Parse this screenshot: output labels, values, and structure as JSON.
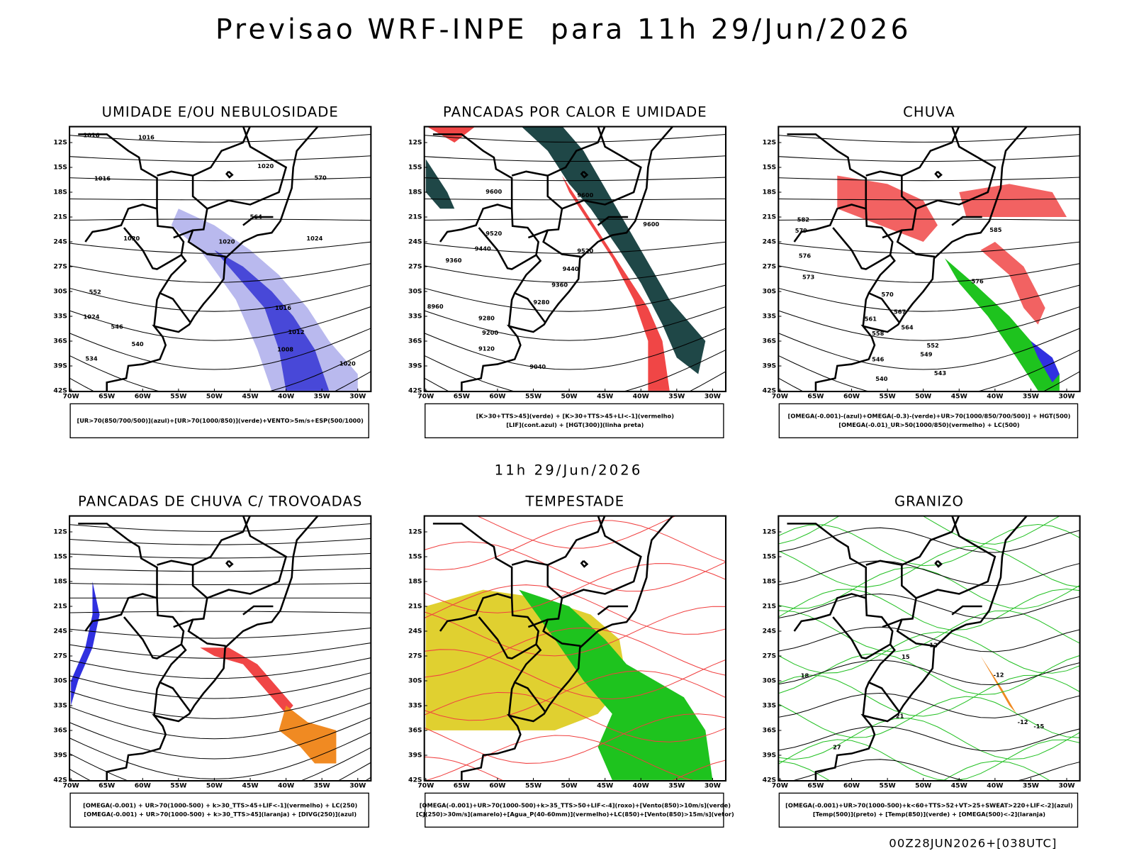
{
  "title": "Previsao WRF-INPE  para 11h 29/Jun/2026",
  "subtitle": "11h 29/Jun/2026",
  "footer": "00Z28JUN2026+[038UTC]",
  "axes": {
    "lat": [
      "12S",
      "15S",
      "18S",
      "21S",
      "24S",
      "27S",
      "30S",
      "33S",
      "36S",
      "39S",
      "42S"
    ],
    "lon": [
      "70W",
      "65W",
      "60W",
      "55W",
      "50W",
      "45W",
      "40W",
      "35W",
      "30W"
    ]
  },
  "panels": [
    {
      "title": "UMIDADE E/OU NEBULOSIDADE",
      "legend": [
        "[UR>70(850/700/500)](azul)+[UR>70(1000/850)](verde)+VENTO>5m/s+ESP(500/1000)"
      ],
      "contour_labels": [
        "1016",
        "1016",
        "1016",
        "1020",
        "1020",
        "1024",
        "1020",
        "1024",
        "1016",
        "1012",
        "1008",
        "1020",
        "570",
        "564",
        "552",
        "546",
        "540",
        "534"
      ]
    },
    {
      "title": "PANCADAS POR CALOR E UMIDADE",
      "legend": [
        "[K>30+TTS>45](verde) + [K>30+TTS>45+LI<-1](vermelho)",
        "[LIF](cont.azul) + [HGT(300)](linha preta)"
      ],
      "contour_labels": [
        "9600",
        "9600",
        "9600",
        "9520",
        "9520",
        "9440",
        "9440",
        "9360",
        "9360",
        "9280",
        "9280",
        "9200",
        "9120",
        "9040",
        "8960"
      ]
    },
    {
      "title": "CHUVA",
      "legend": [
        "[OMEGA(-0.001)-(azul)+OMEGA(-0.3)-(verde)+UR>70(1000/850/700/500)] + HGT(500)",
        "[OMEGA(-0.01)_UR>50(1000/850)(vermelho) + LC(500)"
      ],
      "contour_labels": [
        "582",
        "579",
        "576",
        "573",
        "570",
        "567",
        "564",
        "561",
        "558",
        "552",
        "549",
        "546",
        "543",
        "540",
        "576",
        "585"
      ]
    },
    {
      "title": "PANCADAS DE CHUVA C/ TROVOADAS",
      "legend": [
        "[OMEGA(-0.001) + UR>70(1000-500) + k>30_TTS>45+LIF<-1](vermelho) + LC(250)",
        "[OMEGA(-0.001) + UR>70(1000-500) + k>30_TTS>45](laranja) + [DIVG(250)](azul)"
      ],
      "contour_labels": []
    },
    {
      "title": "TEMPESTADE",
      "legend": [
        "[OMEGA(-0.001)+UR>70(1000-500)+k>35_TTS>50+LIF<-4](roxo)+[Vento(850)>10m/s](verde)",
        "[CJ(250)>30m/s](amarelo)+[Agua_P(40-60mm)](vermelho)+LC(850)+[Vento(850)>15m/s](vetor)"
      ],
      "contour_labels": []
    },
    {
      "title": "GRANIZO",
      "legend": [
        "[OMEGA(-0.001)+UR>70(1000-500)+k<60+TTS>52+VT>25+SWEAT>220+LIF<-2](azul)",
        "[Temp(500)](preto) + [Temp(850)](verde) + [OMEGA(500)<-2](laranja)"
      ],
      "contour_labels": [
        "12",
        "15",
        "18",
        "21",
        "27",
        "-12",
        "-15",
        "-12"
      ]
    }
  ]
}
